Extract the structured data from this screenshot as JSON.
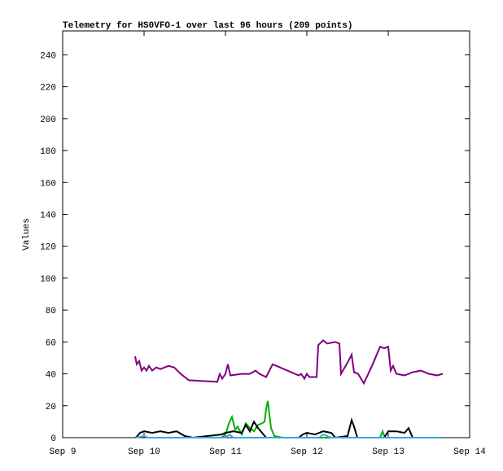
{
  "chart_data": {
    "type": "line",
    "title": "Telemetry for HS0VFO-1 over last 96 hours (209 points)",
    "y_label": "Values",
    "xlim": [
      9,
      14
    ],
    "xticks": [
      {
        "value": 9,
        "label": "Sep 9"
      },
      {
        "value": 10,
        "label": "Sep 10"
      },
      {
        "value": 11,
        "label": "Sep 11"
      },
      {
        "value": 12,
        "label": "Sep 12"
      },
      {
        "value": 13,
        "label": "Sep 13"
      },
      {
        "value": 14,
        "label": "Sep 14"
      }
    ],
    "ylim": [
      0,
      255
    ],
    "yticks": [
      0,
      20,
      40,
      60,
      80,
      100,
      120,
      140,
      160,
      180,
      200,
      220,
      240
    ],
    "series": [
      {
        "color": "#800080",
        "x": [
          9.89,
          9.91,
          9.94,
          9.97,
          10.0,
          10.03,
          10.06,
          10.1,
          10.15,
          10.2,
          10.3,
          10.37,
          10.45,
          10.55,
          10.9,
          10.93,
          10.96,
          11.0,
          11.03,
          11.06,
          11.2,
          11.3,
          11.37,
          11.42,
          11.5,
          11.58,
          11.9,
          11.93,
          11.97,
          12.0,
          12.03,
          12.12,
          12.14,
          12.2,
          12.25,
          12.35,
          12.4,
          12.42,
          12.5,
          12.53,
          12.55,
          12.58,
          12.63,
          12.7,
          12.8,
          12.9,
          12.95,
          13.0,
          13.03,
          13.06,
          13.1,
          13.2,
          13.3,
          13.4,
          13.5,
          13.6,
          13.67
        ],
        "values": [
          51,
          46,
          48,
          42,
          44,
          42,
          45,
          42,
          44,
          43,
          45,
          44,
          40,
          36,
          35,
          40,
          37,
          40,
          46,
          39,
          40,
          40,
          42,
          40,
          38,
          46,
          39,
          40,
          37,
          40,
          38,
          38,
          58,
          61,
          59,
          60,
          59,
          40,
          47,
          50,
          52,
          41,
          40,
          34,
          45,
          57,
          56,
          57,
          42,
          45,
          40,
          39,
          41,
          42,
          40,
          39,
          40
        ]
      },
      {
        "color": "#00b000",
        "x": [
          10.95,
          11.0,
          11.05,
          11.08,
          11.12,
          11.15,
          11.2,
          11.25,
          11.3,
          11.35,
          11.4,
          11.45,
          11.48,
          11.5,
          11.52,
          11.56,
          11.6,
          11.7,
          12.9,
          12.93,
          12.96,
          13.6
        ],
        "values": [
          0,
          2,
          10,
          13,
          5,
          7,
          2,
          9,
          6,
          4,
          8,
          9,
          10,
          18,
          23,
          6,
          1,
          0,
          0,
          4,
          0,
          0
        ]
      },
      {
        "color": "#000000",
        "x": [
          9.9,
          9.95,
          10.0,
          10.1,
          10.2,
          10.3,
          10.4,
          10.5,
          10.6,
          10.95,
          11.0,
          11.1,
          11.2,
          11.25,
          11.3,
          11.35,
          11.4,
          11.5,
          11.9,
          11.95,
          12.0,
          12.1,
          12.2,
          12.3,
          12.35,
          12.5,
          12.55,
          12.58,
          12.62,
          12.95,
          13.0,
          13.1,
          13.2,
          13.25,
          13.3,
          13.6
        ],
        "values": [
          0,
          3,
          4,
          3,
          4,
          3,
          4,
          1,
          0,
          2,
          3,
          4,
          3,
          8,
          4,
          10,
          6,
          0,
          0,
          2,
          3,
          2,
          4,
          3,
          0,
          1,
          11,
          7,
          0,
          0,
          4,
          4,
          3,
          6,
          0,
          0
        ]
      },
      {
        "color": "#3aa7d8",
        "x": [
          9.9,
          10.0,
          10.05,
          11.0,
          11.05,
          11.1,
          12.15,
          12.2,
          12.3,
          13.65
        ],
        "values": [
          0,
          1,
          0,
          0,
          2,
          0,
          0,
          2,
          0,
          0
        ]
      }
    ]
  }
}
